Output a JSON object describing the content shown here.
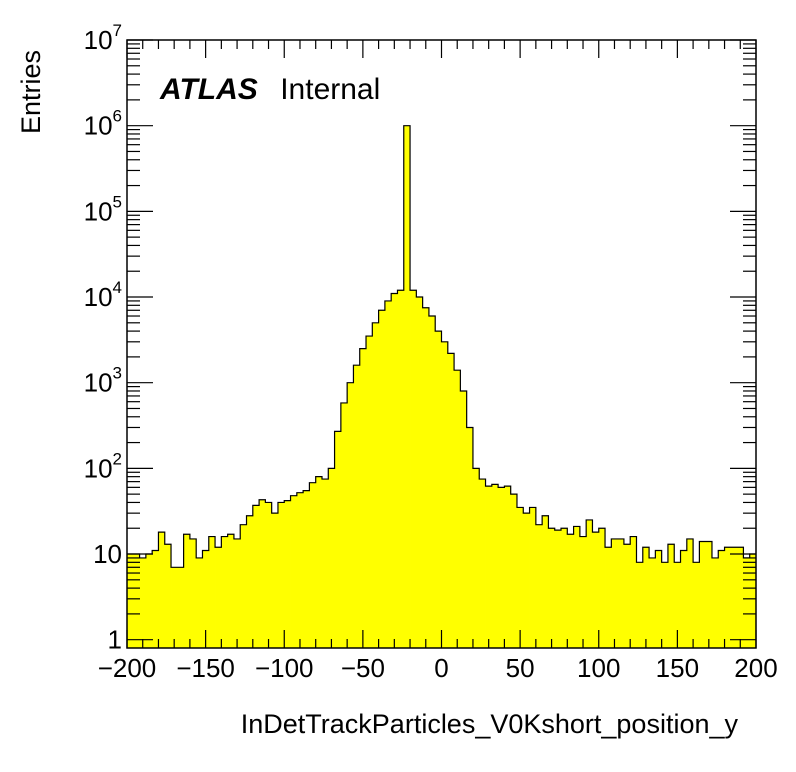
{
  "chart_data": {
    "type": "histogram",
    "xlabel": "InDetTrackParticles_V0Kshort_position_y",
    "ylabel": "Entries",
    "xlim": [
      -200,
      200
    ],
    "ylim": [
      0.8,
      10000000
    ],
    "yscale": "log",
    "bin_width": 4,
    "fill_color": "#ffff00",
    "line_color": "#000000",
    "grid": false,
    "annotation": {
      "bold": "ATLAS",
      "text": "Internal"
    },
    "x_ticks": [
      "−200",
      "−150",
      "−100",
      "−50",
      "0",
      "50",
      "100",
      "150",
      "200"
    ],
    "y_ticks": [
      {
        "base": "1",
        "exp": ""
      },
      {
        "base": "10",
        "exp": ""
      },
      {
        "base": "10",
        "exp": "2"
      },
      {
        "base": "10",
        "exp": "3"
      },
      {
        "base": "10",
        "exp": "4"
      },
      {
        "base": "10",
        "exp": "5"
      },
      {
        "base": "10",
        "exp": "6"
      },
      {
        "base": "10",
        "exp": "7"
      }
    ],
    "bin_edges_start": -200,
    "values": [
      10,
      10,
      9,
      10,
      11,
      18,
      13,
      7,
      7,
      17,
      15,
      9,
      11,
      16,
      12,
      16,
      17,
      15,
      22,
      28,
      37,
      43,
      40,
      30,
      40,
      42,
      48,
      52,
      55,
      68,
      80,
      75,
      100,
      270,
      580,
      1000,
      1600,
      2500,
      3500,
      5000,
      7000,
      9000,
      11000,
      12000,
      1000000,
      12000,
      10000,
      7500,
      6000,
      4000,
      3000,
      2200,
      1400,
      800,
      300,
      100,
      75,
      62,
      65,
      60,
      62,
      50,
      35,
      30,
      35,
      22,
      28,
      20,
      19,
      20,
      17,
      21,
      16,
      25,
      18,
      20,
      12,
      15,
      15,
      13,
      16,
      8,
      12,
      9,
      11,
      8,
      13,
      8,
      11,
      15,
      8,
      14,
      14,
      9,
      11,
      12,
      12,
      12,
      9,
      10
    ]
  }
}
